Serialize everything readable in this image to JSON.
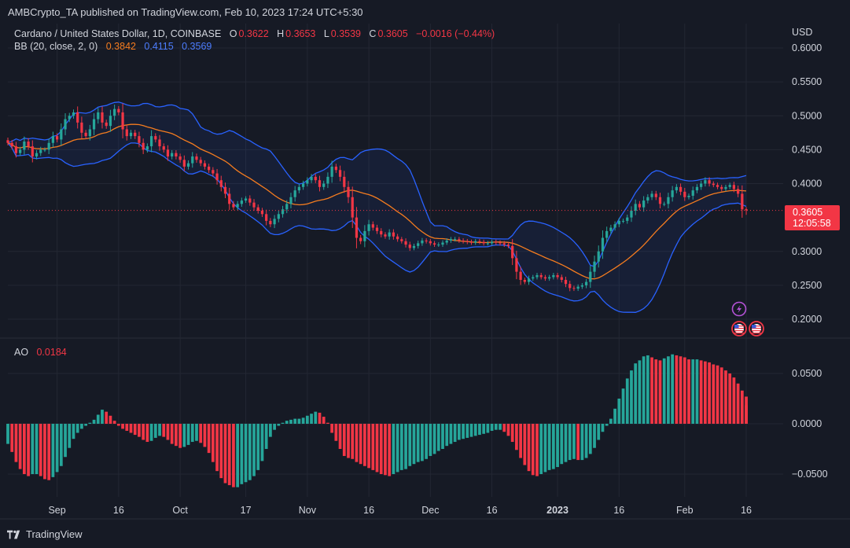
{
  "publish_line": "AMBCrypto_TA published on TradingView.com, Feb 10, 2023 17:24 UTC+5:30",
  "brand": "TradingView",
  "legend": {
    "symbol": "Cardano / United States Dollar, 1D, COINBASE",
    "o_label": "O",
    "o": "0.3622",
    "h_label": "H",
    "h": "0.3653",
    "l_label": "L",
    "l": "0.3539",
    "c_label": "C",
    "c": "0.3605",
    "change": "−0.0016 (−0.44%)",
    "bb_label": "BB (20, close, 2, 0)",
    "bb_basis": "0.3842",
    "bb_upper": "0.4115",
    "bb_lower": "0.3569",
    "ao_label": "AO",
    "ao_value": "0.0184"
  },
  "current_price": {
    "price": "0.3605",
    "countdown": "12:05:58",
    "value": 0.3605
  },
  "colors": {
    "up": "#26a69a",
    "down": "#f23645",
    "basis": "#f57c1f",
    "band": "#2962ff",
    "fill": "rgba(41,98,255,0.08)",
    "bg": "#161a25",
    "grid": "#232733",
    "text": "#d1d4dc"
  },
  "chart_data": [
    {
      "type": "candlestick",
      "title": "Cardano / United States Dollar, 1D, COINBASE",
      "currency": "USD",
      "ylim": [
        0.18,
        0.63
      ],
      "y_ticks": [
        "0.6000",
        "0.5500",
        "0.5000",
        "0.4500",
        "0.4000",
        "0.3000",
        "0.2500",
        "0.2000"
      ],
      "x_ticks": [
        "Sep",
        "16",
        "Oct",
        "17",
        "Nov",
        "16",
        "Dec",
        "16",
        "2023",
        "16",
        "Feb",
        "16"
      ],
      "x_tick_dates": [
        "2022-09-01",
        "2022-09-16",
        "2022-10-01",
        "2022-10-17",
        "2022-11-01",
        "2022-11-16",
        "2022-12-01",
        "2022-12-16",
        "2023-01-01",
        "2023-01-16",
        "2023-02-01",
        "2023-02-16"
      ],
      "x_range": [
        "2022-08-20",
        "2023-02-25"
      ],
      "first_date": "2022-08-20",
      "close": [
        0.46,
        0.455,
        0.445,
        0.45,
        0.462,
        0.455,
        0.44,
        0.445,
        0.45,
        0.45,
        0.46,
        0.47,
        0.465,
        0.48,
        0.495,
        0.5,
        0.505,
        0.49,
        0.475,
        0.47,
        0.48,
        0.495,
        0.505,
        0.49,
        0.485,
        0.5,
        0.51,
        0.505,
        0.48,
        0.47,
        0.475,
        0.47,
        0.46,
        0.45,
        0.455,
        0.47,
        0.465,
        0.455,
        0.45,
        0.44,
        0.445,
        0.44,
        0.435,
        0.425,
        0.43,
        0.44,
        0.435,
        0.43,
        0.425,
        0.42,
        0.415,
        0.405,
        0.395,
        0.385,
        0.37,
        0.365,
        0.37,
        0.375,
        0.378,
        0.372,
        0.365,
        0.36,
        0.355,
        0.345,
        0.34,
        0.348,
        0.355,
        0.362,
        0.37,
        0.38,
        0.39,
        0.395,
        0.4,
        0.405,
        0.41,
        0.405,
        0.395,
        0.4,
        0.41,
        0.425,
        0.42,
        0.41,
        0.395,
        0.38,
        0.35,
        0.32,
        0.315,
        0.33,
        0.34,
        0.335,
        0.33,
        0.325,
        0.322,
        0.328,
        0.322,
        0.318,
        0.315,
        0.31,
        0.305,
        0.308,
        0.312,
        0.316,
        0.315,
        0.312,
        0.31,
        0.31,
        0.313,
        0.316,
        0.318,
        0.318,
        0.316,
        0.315,
        0.314,
        0.313,
        0.315,
        0.314,
        0.312,
        0.312,
        0.314,
        0.313,
        0.312,
        0.31,
        0.308,
        0.29,
        0.27,
        0.258,
        0.255,
        0.26,
        0.262,
        0.265,
        0.262,
        0.26,
        0.262,
        0.265,
        0.262,
        0.258,
        0.252,
        0.246,
        0.245,
        0.248,
        0.25,
        0.255,
        0.27,
        0.285,
        0.3,
        0.32,
        0.33,
        0.335,
        0.34,
        0.345,
        0.345,
        0.35,
        0.36,
        0.37,
        0.365,
        0.375,
        0.38,
        0.385,
        0.38,
        0.37,
        0.37,
        0.38,
        0.39,
        0.395,
        0.388,
        0.38,
        0.382,
        0.39,
        0.395,
        0.4,
        0.405,
        0.4,
        0.398,
        0.395,
        0.392,
        0.395,
        0.398,
        0.392,
        0.385,
        0.362,
        0.3605
      ],
      "bb_basis": "20-period SMA of close",
      "bb_upper": "basis + 2 standard deviations",
      "bb_lower": "basis − 2 standard deviations",
      "markers": [
        "lightning-icon",
        "us-flag-icon",
        "us-flag-icon"
      ]
    },
    {
      "type": "bar",
      "title": "AO",
      "ylim": [
        -0.075,
        0.08
      ],
      "y_ticks": [
        "0.0500",
        "0.0000",
        "−0.0500"
      ],
      "values": [
        -0.02,
        -0.028,
        -0.038,
        -0.045,
        -0.05,
        -0.052,
        -0.05,
        -0.05,
        -0.052,
        -0.055,
        -0.056,
        -0.053,
        -0.048,
        -0.042,
        -0.033,
        -0.024,
        -0.015,
        -0.009,
        -0.005,
        -0.002,
        0.001,
        0.004,
        0.009,
        0.014,
        0.012,
        0.008,
        0.003,
        -0.002,
        -0.005,
        -0.007,
        -0.009,
        -0.011,
        -0.013,
        -0.016,
        -0.018,
        -0.017,
        -0.014,
        -0.012,
        -0.013,
        -0.016,
        -0.02,
        -0.022,
        -0.024,
        -0.023,
        -0.021,
        -0.018,
        -0.017,
        -0.019,
        -0.023,
        -0.029,
        -0.038,
        -0.047,
        -0.054,
        -0.059,
        -0.061,
        -0.063,
        -0.063,
        -0.06,
        -0.058,
        -0.056,
        -0.052,
        -0.046,
        -0.037,
        -0.025,
        -0.013,
        -0.006,
        -0.002,
        0.001,
        0.003,
        0.004,
        0.005,
        0.005,
        0.006,
        0.008,
        0.01,
        0.012,
        0.011,
        0.007,
        0.001,
        -0.009,
        -0.017,
        -0.025,
        -0.032,
        -0.034,
        -0.035,
        -0.038,
        -0.04,
        -0.042,
        -0.044,
        -0.046,
        -0.048,
        -0.05,
        -0.051,
        -0.052,
        -0.05,
        -0.048,
        -0.046,
        -0.045,
        -0.042,
        -0.04,
        -0.038,
        -0.037,
        -0.035,
        -0.032,
        -0.03,
        -0.027,
        -0.025,
        -0.022,
        -0.02,
        -0.018,
        -0.016,
        -0.015,
        -0.014,
        -0.013,
        -0.012,
        -0.011,
        -0.01,
        -0.009,
        -0.007,
        -0.006,
        -0.006,
        -0.008,
        -0.012,
        -0.018,
        -0.026,
        -0.034,
        -0.041,
        -0.047,
        -0.051,
        -0.052,
        -0.05,
        -0.048,
        -0.046,
        -0.045,
        -0.043,
        -0.04,
        -0.038,
        -0.036,
        -0.035,
        -0.036,
        -0.036,
        -0.034,
        -0.03,
        -0.024,
        -0.016,
        -0.008,
        -0.002,
        0.005,
        0.015,
        0.025,
        0.035,
        0.045,
        0.053,
        0.06,
        0.063,
        0.067,
        0.068,
        0.066,
        0.064,
        0.063,
        0.065,
        0.067,
        0.069,
        0.068,
        0.067,
        0.066,
        0.064,
        0.064,
        0.064,
        0.063,
        0.062,
        0.061,
        0.059,
        0.058,
        0.056,
        0.053,
        0.05,
        0.046,
        0.04,
        0.033,
        0.027,
        0.0184
      ]
    }
  ]
}
